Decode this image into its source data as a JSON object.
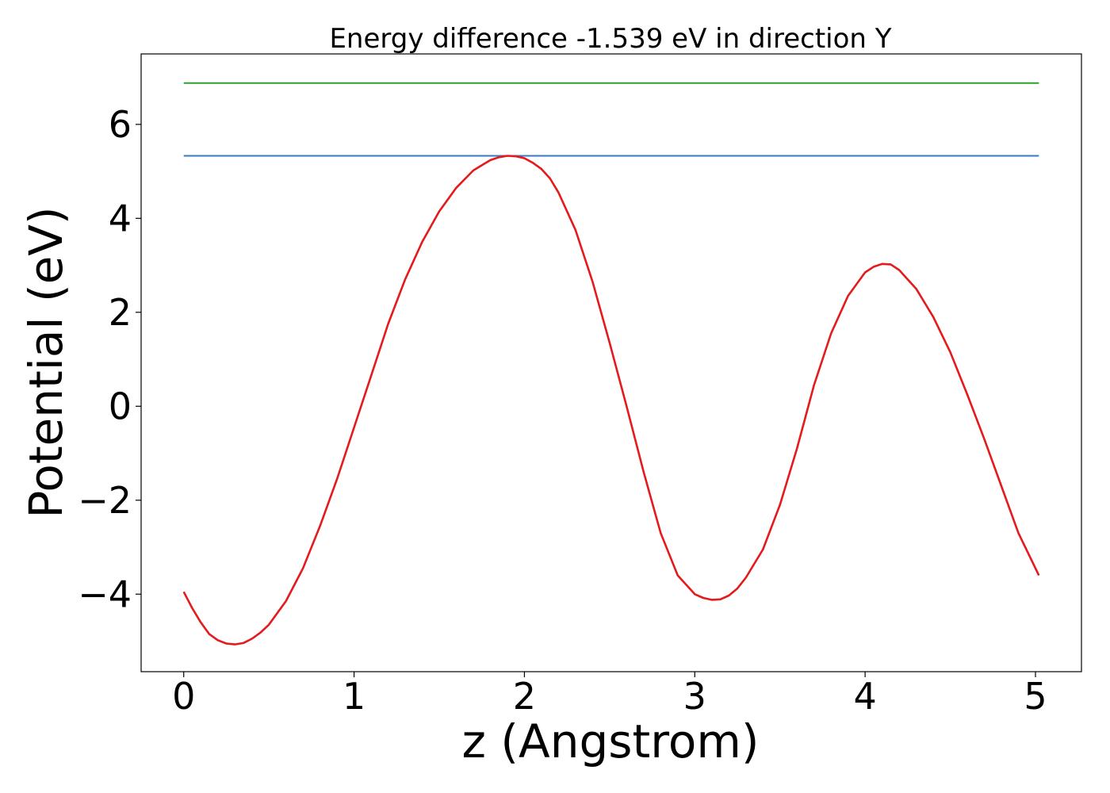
{
  "chart_data": {
    "type": "line",
    "title": "Energy difference -1.539 eV in direction Y",
    "xlabel": "z (Angstrom)",
    "ylabel": "Potential (eV)",
    "xlim": [
      -0.25,
      5.27
    ],
    "ylim": [
      -5.65,
      7.5
    ],
    "x_ticks": [
      0,
      1,
      2,
      3,
      4,
      5
    ],
    "x_tick_labels": [
      "0",
      "1",
      "2",
      "3",
      "4",
      "5"
    ],
    "y_ticks": [
      -4,
      -2,
      0,
      2,
      4,
      6
    ],
    "y_tick_labels": [
      "−4",
      "−2",
      "0",
      "2",
      "4",
      "6"
    ],
    "grid": false,
    "series": [
      {
        "color": "#2ca02c",
        "x": [
          0,
          5.02
        ],
        "y": [
          6.88,
          6.88
        ]
      },
      {
        "color": "#3a78c0",
        "x": [
          0,
          5.02
        ],
        "y": [
          5.33,
          5.33
        ]
      },
      {
        "color": "#e41a1c",
        "x": [
          0,
          0.05,
          0.1,
          0.15,
          0.2,
          0.25,
          0.3,
          0.35,
          0.4,
          0.45,
          0.5,
          0.6,
          0.7,
          0.8,
          0.9,
          1.0,
          1.1,
          1.2,
          1.3,
          1.4,
          1.5,
          1.6,
          1.7,
          1.8,
          1.85,
          1.9,
          1.95,
          2.0,
          2.05,
          2.1,
          2.15,
          2.2,
          2.3,
          2.4,
          2.5,
          2.6,
          2.7,
          2.8,
          2.9,
          3.0,
          3.05,
          3.1,
          3.15,
          3.2,
          3.25,
          3.3,
          3.4,
          3.5,
          3.6,
          3.7,
          3.8,
          3.9,
          4.0,
          4.05,
          4.1,
          4.15,
          4.2,
          4.3,
          4.4,
          4.5,
          4.6,
          4.7,
          4.8,
          4.9,
          5.02
        ],
        "y": [
          -3.95,
          -4.3,
          -4.6,
          -4.85,
          -4.98,
          -5.05,
          -5.07,
          -5.04,
          -4.95,
          -4.82,
          -4.65,
          -4.15,
          -3.45,
          -2.55,
          -1.55,
          -0.45,
          0.65,
          1.75,
          2.7,
          3.5,
          4.15,
          4.65,
          5.02,
          5.24,
          5.3,
          5.33,
          5.32,
          5.28,
          5.18,
          5.05,
          4.85,
          4.55,
          3.75,
          2.65,
          1.35,
          0.0,
          -1.4,
          -2.7,
          -3.6,
          -4.0,
          -4.08,
          -4.12,
          -4.11,
          -4.03,
          -3.88,
          -3.65,
          -3.05,
          -2.1,
          -0.9,
          0.45,
          1.55,
          2.35,
          2.85,
          2.97,
          3.03,
          3.02,
          2.9,
          2.5,
          1.9,
          1.15,
          0.25,
          -0.7,
          -1.7,
          -2.7,
          -3.6
        ]
      }
    ]
  }
}
